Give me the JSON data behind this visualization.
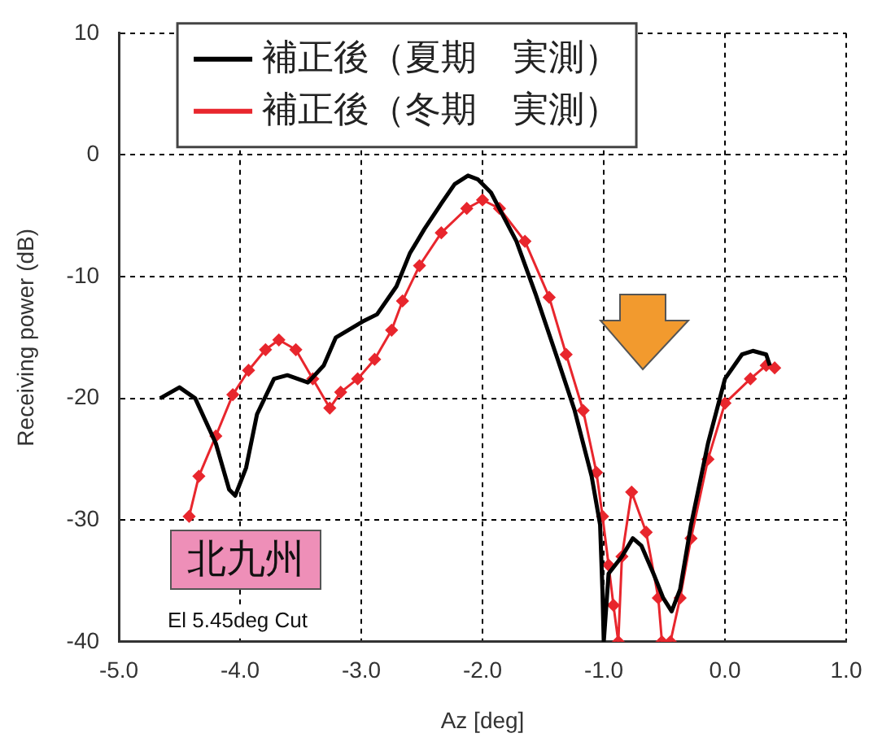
{
  "chart_data": {
    "type": "line",
    "xlabel": "Az [deg]",
    "ylabel": "Receiving power (dB)",
    "xlim": [
      -5,
      1
    ],
    "xticks": [
      {
        "value": -5,
        "label": "-5.0"
      },
      {
        "value": -4,
        "label": "-4.0"
      },
      {
        "value": -3,
        "label": "-3.0"
      },
      {
        "value": -2,
        "label": "-2.0"
      },
      {
        "value": -1,
        "label": "-1.0"
      },
      {
        "value": 0,
        "label": "0.0"
      },
      {
        "value": 1,
        "label": "1.0"
      }
    ],
    "ylim": [
      -40,
      10
    ],
    "yticks": [
      -40,
      -30,
      -20,
      -10,
      0,
      10
    ],
    "grid": true,
    "legend": "top left",
    "annotations": [
      "北九州",
      "El 5.45deg Cut"
    ],
    "series": [
      {
        "name": "補正後（夏期　実測）",
        "color": "#000000",
        "marker": "none",
        "x": [
          -4.66,
          -4.5,
          -4.37,
          -4.2,
          -4.09,
          -4.04,
          -3.95,
          -3.86,
          -3.72,
          -3.61,
          -3.44,
          -3.31,
          -3.21,
          -2.99,
          -2.87,
          -2.71,
          -2.6,
          -2.48,
          -2.34,
          -2.23,
          -2.12,
          -2.04,
          -1.93,
          -1.72,
          -1.56,
          -1.38,
          -1.24,
          -1.1,
          -1.03,
          -1.01,
          -1.0,
          -0.96,
          -0.85,
          -0.76,
          -0.69,
          -0.59,
          -0.51,
          -0.44,
          -0.37,
          -0.28,
          -0.14,
          0,
          0.14,
          0.23,
          0.34,
          0.37
        ],
        "values": [
          -20,
          -19.1,
          -20,
          -23.7,
          -27.5,
          -28,
          -25.7,
          -21.3,
          -18.4,
          -18.1,
          -18.7,
          -17.3,
          -15,
          -13.7,
          -13.1,
          -10.8,
          -8.1,
          -6.1,
          -4,
          -2.4,
          -1.7,
          -2,
          -3.1,
          -7.1,
          -11.5,
          -16.8,
          -21,
          -26.4,
          -30.4,
          -36,
          -40,
          -34.4,
          -33,
          -31.5,
          -32.1,
          -34.4,
          -36.4,
          -37.5,
          -35.7,
          -30.4,
          -23.7,
          -18.4,
          -16.4,
          -16.1,
          -16.4,
          -17.3
        ]
      },
      {
        "name": "補正後（冬期　実測）",
        "color": "#e8262d",
        "marker": "diamond",
        "x": [
          -4.42,
          -4.34,
          -4.2,
          -4.06,
          -3.93,
          -3.79,
          -3.68,
          -3.54,
          -3.4,
          -3.26,
          -3.17,
          -3.03,
          -2.89,
          -2.75,
          -2.66,
          -2.52,
          -2.34,
          -2.13,
          -2.0,
          -1.86,
          -1.65,
          -1.45,
          -1.31,
          -1.17,
          -1.06,
          -1.01,
          -0.96,
          -0.92,
          -0.88,
          -0.85,
          -0.77,
          -0.65,
          -0.55,
          -0.52,
          -0.45,
          -0.37,
          -0.28,
          -0.14,
          0,
          0.21,
          0.34,
          0.41
        ],
        "values": [
          -29.7,
          -26.4,
          -23.1,
          -19.7,
          -17.7,
          -16,
          -15.2,
          -16,
          -18.4,
          -20.8,
          -19.5,
          -18.4,
          -16.8,
          -14.4,
          -12,
          -9.1,
          -6.4,
          -4.4,
          -3.7,
          -4.4,
          -7.1,
          -11.7,
          -16.4,
          -21,
          -26.1,
          -29.7,
          -33.7,
          -37,
          -40,
          -33,
          -27.7,
          -31,
          -36.4,
          -40,
          -40,
          -36.4,
          -31.5,
          -25,
          -20.4,
          -18.4,
          -17.3,
          -17.5
        ]
      }
    ]
  }
}
